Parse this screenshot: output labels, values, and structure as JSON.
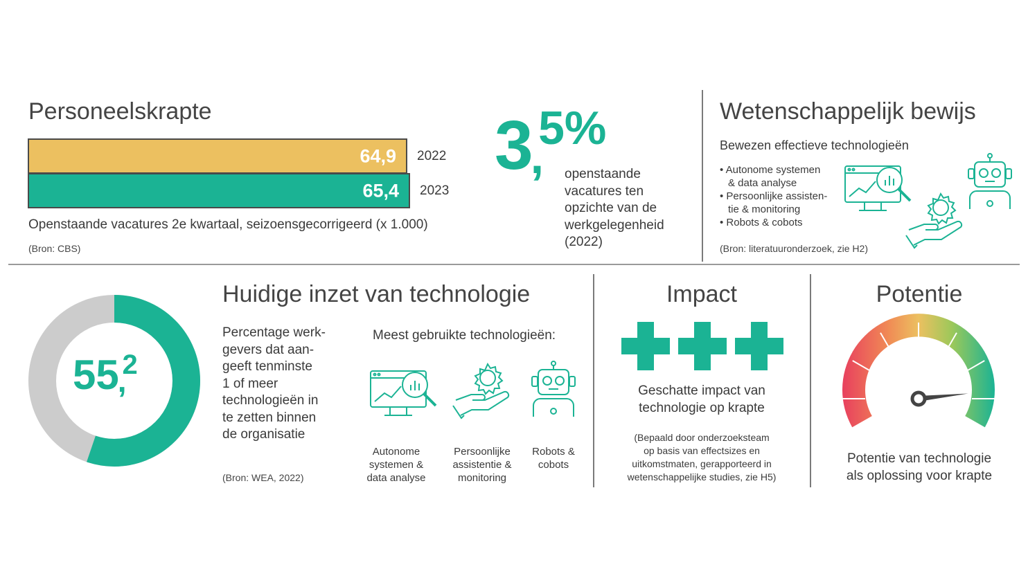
{
  "personeelskrapte": {
    "title": "Personeelskrapte",
    "bars": [
      {
        "year": "2022",
        "value_label": "64,9",
        "value": 64.9,
        "color": "#ecc060"
      },
      {
        "year": "2023",
        "value_label": "65,4",
        "value": 65.4,
        "color": "#1bb394"
      }
    ],
    "caption": "Openstaande vacatures 2e kwartaal, seizoensgecorrigeerd (x 1.000)",
    "source": "(Bron: CBS)"
  },
  "vacatures": {
    "big_int": "3",
    "big_comma": ",",
    "big_dec": "5%",
    "text_lines": [
      "openstaande",
      "vacatures ten",
      "opzichte van de",
      "werkgelegenheid",
      "(2022)"
    ]
  },
  "wetenschappelijk": {
    "title": "Wetenschappelijk bewijs",
    "subtitle": "Bewezen effectieve technologieën",
    "bullets": [
      [
        "Autonome systemen",
        "& data analyse"
      ],
      [
        "Persoonlijke assisten-",
        "tie & monitoring"
      ],
      [
        "Robots & cobots"
      ]
    ],
    "source": "(Bron: literatuuronderzoek, zie H2)",
    "icons": [
      "monitor-analytics-icon",
      "robot-icon",
      "gear-hand-icon"
    ]
  },
  "huidige_inzet": {
    "title": "Huidige inzet van technologie",
    "donut_int": "55",
    "donut_comma": ",",
    "donut_dec": "2",
    "donut_percent": 55.2,
    "donut_color": "#1bb394",
    "donut_rest_color": "#cccccc",
    "description_lines": [
      "Percentage werk-",
      "gevers dat aan-",
      "geeft tenminste",
      "1 of meer",
      "technologieën in",
      "te zetten binnen",
      "de organisatie"
    ],
    "source": "(Bron: WEA, 2022)",
    "most_used_title": "Meest gebruikte technologieën:",
    "technologies": [
      {
        "lines": [
          "Autonome",
          "systemen &",
          "data analyse"
        ],
        "icon": "monitor-analytics-icon"
      },
      {
        "lines": [
          "Persoonlijke",
          "assistentie &",
          "monitoring"
        ],
        "icon": "gear-hand-icon"
      },
      {
        "lines": [
          "Robots &",
          "cobots"
        ],
        "icon": "robot-icon"
      }
    ]
  },
  "impact": {
    "title": "Impact",
    "plus_count": 3,
    "label_lines": [
      "Geschatte impact van",
      "technologie op krapte"
    ],
    "note_lines": [
      "(Bepaald door onderzoeksteam",
      "op basis van effectsizes en",
      "uitkomstmaten, gerapporteerd in",
      "wetenschappelijke studies, zie H5)"
    ]
  },
  "potentie": {
    "title": "Potentie",
    "gauge_level": 0.85,
    "label_lines": [
      "Potentie van technologie",
      "als oplossing voor krapte"
    ]
  },
  "colors": {
    "teal": "#1bb394",
    "yellow": "#ecc060",
    "red": "#e8405e",
    "grey": "#cccccc"
  }
}
